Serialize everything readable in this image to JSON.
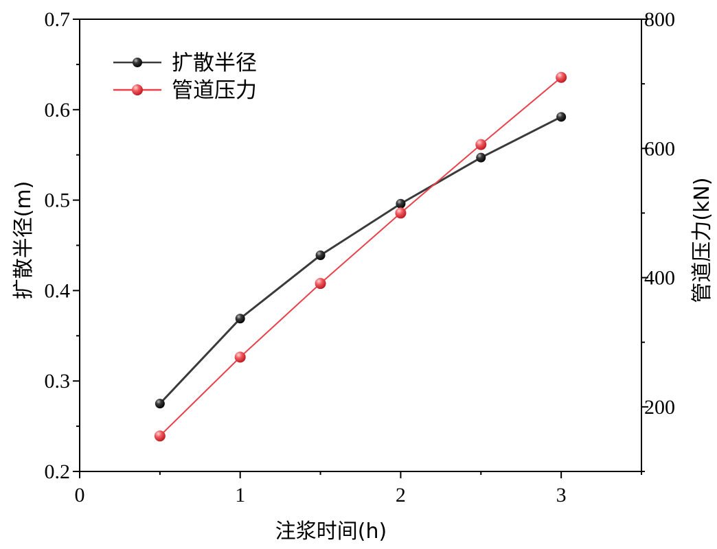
{
  "chart_data": {
    "type": "line",
    "xlabel": "注浆时间(h)",
    "ylabel": "扩散半径(m)",
    "y2label": "管道压力(kN)",
    "xlim": [
      0,
      3.5
    ],
    "ylim": [
      0.2,
      0.7
    ],
    "y2lim": [
      100,
      800
    ],
    "xticks": [
      0,
      1,
      2,
      3
    ],
    "yticks": [
      0.2,
      0.3,
      0.4,
      0.5,
      0.6,
      0.7
    ],
    "y2ticks": [
      200,
      400,
      600,
      800
    ],
    "xtick_labels": [
      "0",
      "1",
      "2",
      "3"
    ],
    "ytick_labels": [
      "0.2",
      "0.3",
      "0.4",
      "0.5",
      "0.6",
      "0.7"
    ],
    "y2tick_labels": [
      "200",
      "400",
      "600",
      "800"
    ],
    "grid": false,
    "legend_position": "top-left",
    "series": [
      {
        "name": "扩散半径",
        "axis": "left",
        "color": "#3a3a3a",
        "marker_color": "#111111",
        "x": [
          0.5,
          1.0,
          1.5,
          2.0,
          2.5,
          3.0
        ],
        "y": [
          0.275,
          0.369,
          0.439,
          0.496,
          0.547,
          0.592
        ]
      },
      {
        "name": "管道压力",
        "axis": "right",
        "color": "#e8414a",
        "marker_color": "#e8414a",
        "x": [
          0.5,
          1.0,
          1.5,
          2.0,
          2.5,
          3.0
        ],
        "y": [
          155,
          277,
          391,
          500,
          606,
          710
        ]
      }
    ]
  }
}
